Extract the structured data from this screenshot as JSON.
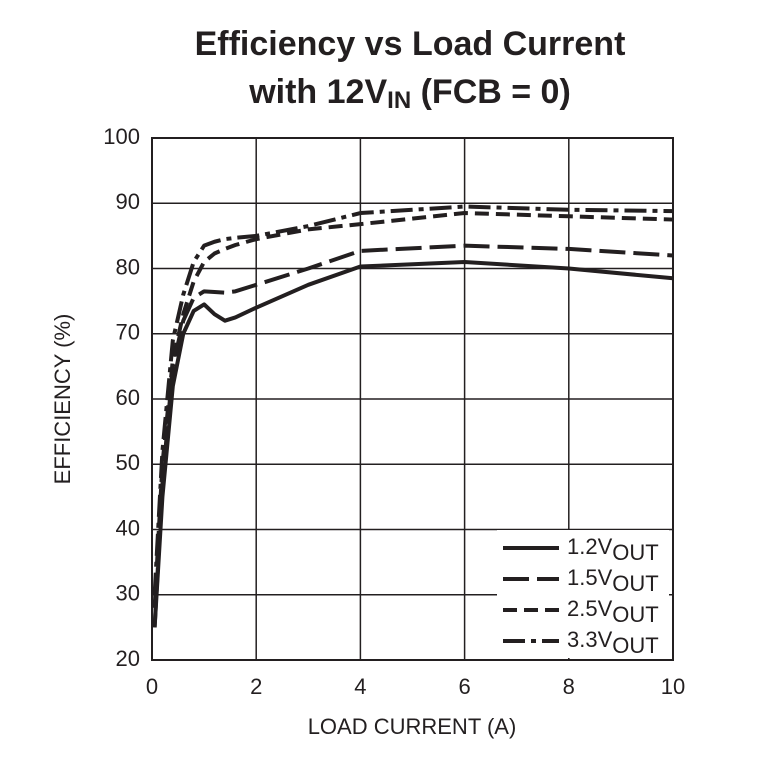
{
  "chart_data": {
    "type": "line",
    "title": "Efficiency vs Load Current",
    "subtitle": {
      "text": "with 12V",
      "sub": "IN",
      "rest": " (FCB = 0)"
    },
    "xlabel": "LOAD CURRENT (A)",
    "ylabel": "EFFICIENCY (%)",
    "x": [
      0.05,
      0.2,
      0.4,
      0.6,
      0.8,
      1.0,
      1.2,
      1.4,
      1.6,
      2,
      3,
      4,
      6,
      8,
      10
    ],
    "series": [
      {
        "name": "1.2V",
        "name_sub": "OUT",
        "color": "#231f20",
        "dash": "solid",
        "values": [
          25,
          45,
          62,
          70,
          73.5,
          74.5,
          73,
          72,
          72.5,
          74,
          77.5,
          80.3,
          81,
          80,
          78.5
        ]
      },
      {
        "name": "1.5V",
        "name_sub": "OUT",
        "color": "#231f20",
        "dash": "long",
        "values": [
          25,
          47,
          65,
          72,
          75.5,
          76.5,
          76.4,
          76.3,
          76.5,
          77.5,
          80,
          82.7,
          83.5,
          83,
          82
        ]
      },
      {
        "name": "2.5V",
        "name_sub": "OUT",
        "color": "#231f20",
        "dash": "short",
        "values": [
          28,
          50,
          66,
          73,
          78,
          81,
          82.3,
          83,
          83.6,
          84.5,
          86,
          86.8,
          88.5,
          88,
          87.5
        ]
      },
      {
        "name": "3.3V",
        "name_sub": "OUT",
        "color": "#231f20",
        "dash": "dashdot",
        "values": [
          30,
          52,
          69,
          76,
          81,
          83.5,
          84.1,
          84.5,
          84.7,
          85,
          86.5,
          88.5,
          89.5,
          89,
          88.8
        ]
      }
    ],
    "xlim": [
      0,
      10
    ],
    "xticks": [
      0,
      2,
      4,
      6,
      8,
      10
    ],
    "ylim": [
      20,
      100
    ],
    "yticks": [
      20,
      30,
      40,
      50,
      60,
      70,
      80,
      90,
      100
    ],
    "grid": true,
    "legend": "lower right"
  }
}
